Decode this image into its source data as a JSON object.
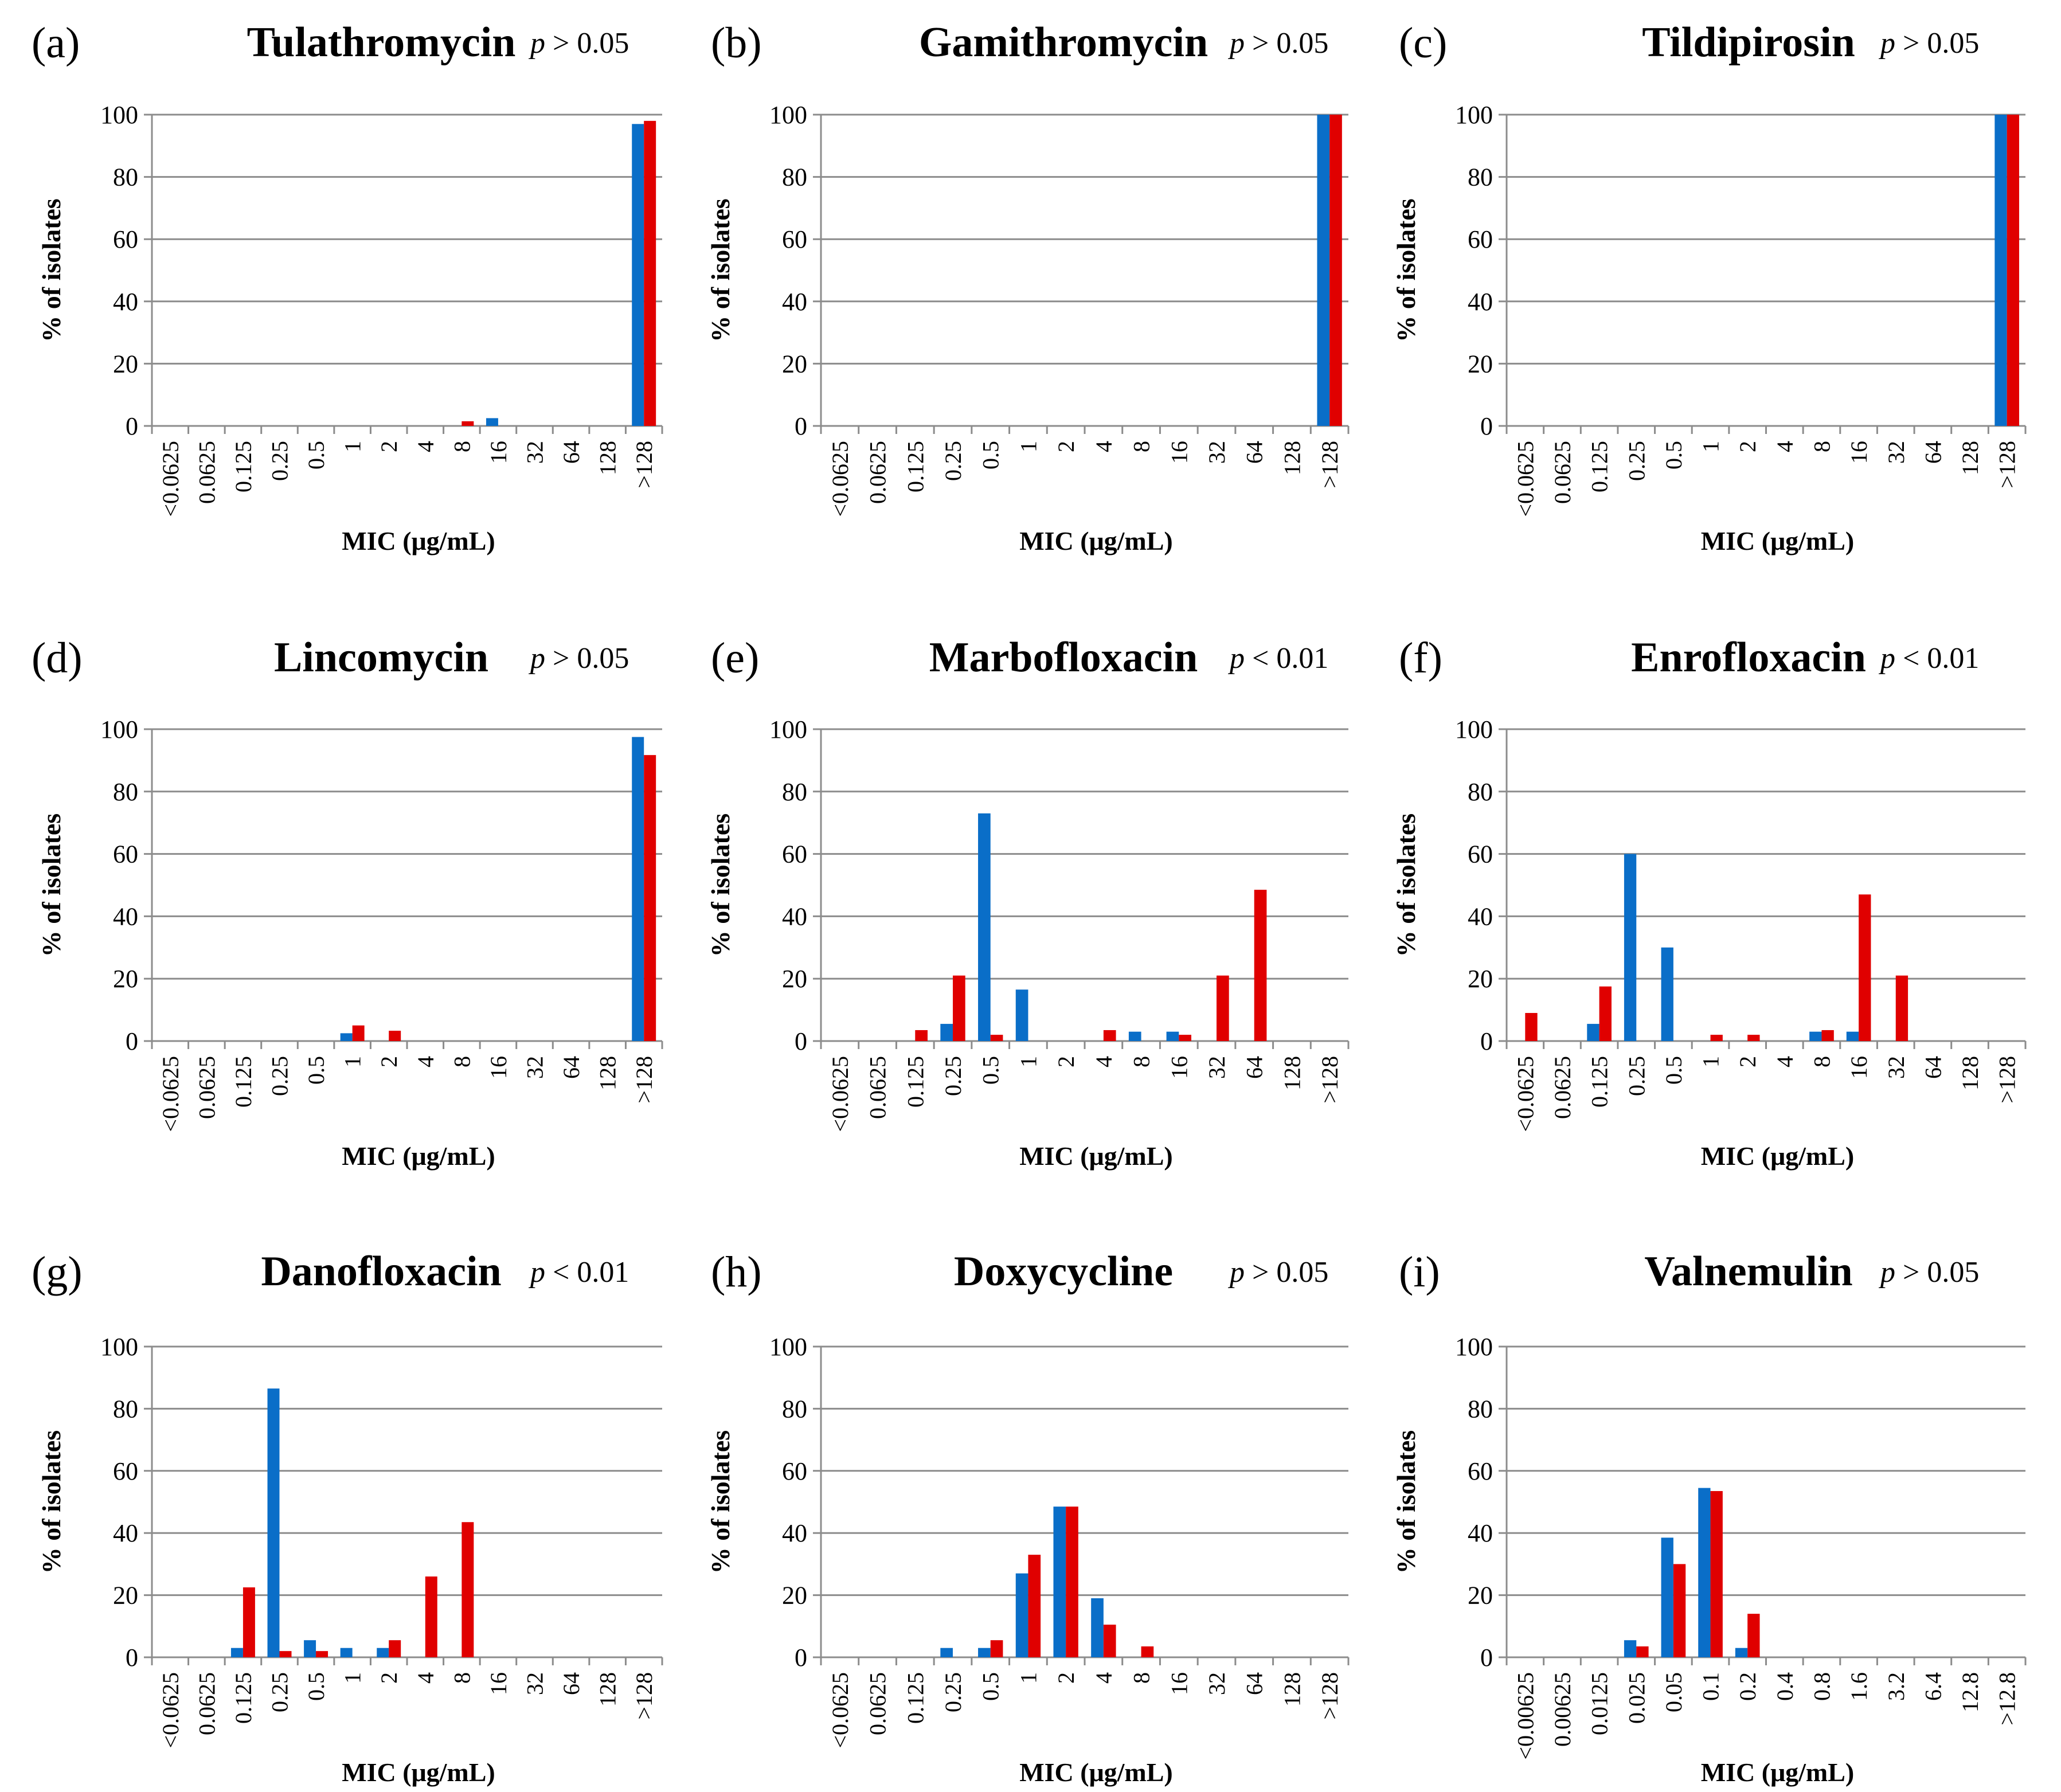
{
  "colors": {
    "series1": "#0a6ec8",
    "series2": "#e00000",
    "grid": "#8c8c8c"
  },
  "chart_data": [
    {
      "type": "bar",
      "panel": "(a)",
      "title": "Tulathromycin",
      "p_symbol": "p",
      "p_rest": " > 0.05",
      "xlabel": "MIC (μg/mL)",
      "ylabel": "% of isolates",
      "ylim": [
        0,
        100
      ],
      "yticks": [
        0,
        20,
        40,
        60,
        80,
        100
      ],
      "categories": [
        "<0.0625",
        "0.0625",
        "0.125",
        "0.25",
        "0.5",
        "1",
        "2",
        "4",
        "8",
        "16",
        "32",
        "64",
        "128",
        ">128"
      ],
      "series": [
        {
          "name": "series1",
          "values": [
            0,
            0,
            0,
            0,
            0,
            0,
            0,
            0,
            0,
            2.5,
            0,
            0,
            0,
            97
          ]
        },
        {
          "name": "series2",
          "values": [
            0,
            0,
            0,
            0,
            0,
            0,
            0,
            0,
            1.5,
            0,
            0,
            0,
            0,
            98
          ]
        }
      ]
    },
    {
      "type": "bar",
      "panel": "(b)",
      "title": "Gamithromycin",
      "p_symbol": "p",
      "p_rest": " > 0.05",
      "xlabel": "MIC (μg/mL)",
      "ylabel": "% of isolates",
      "ylim": [
        0,
        100
      ],
      "yticks": [
        0,
        20,
        40,
        60,
        80,
        100
      ],
      "categories": [
        "<0.0625",
        "0.0625",
        "0.125",
        "0.25",
        "0.5",
        "1",
        "2",
        "4",
        "8",
        "16",
        "32",
        "64",
        "128",
        ">128"
      ],
      "series": [
        {
          "name": "series1",
          "values": [
            0,
            0,
            0,
            0,
            0,
            0,
            0,
            0,
            0,
            0,
            0,
            0,
            0,
            100
          ]
        },
        {
          "name": "series2",
          "values": [
            0,
            0,
            0,
            0,
            0,
            0,
            0,
            0,
            0,
            0,
            0,
            0,
            0,
            100
          ]
        }
      ]
    },
    {
      "type": "bar",
      "panel": "(c)",
      "title": "Tildipirosin",
      "p_symbol": "p",
      "p_rest": " > 0.05",
      "xlabel": "MIC (μg/mL)",
      "ylabel": "% of isolates",
      "ylim": [
        0,
        100
      ],
      "yticks": [
        0,
        20,
        40,
        60,
        80,
        100
      ],
      "categories": [
        "<0.0625",
        "0.0625",
        "0.125",
        "0.25",
        "0.5",
        "1",
        "2",
        "4",
        "8",
        "16",
        "32",
        "64",
        "128",
        ">128"
      ],
      "series": [
        {
          "name": "series1",
          "values": [
            0,
            0,
            0,
            0,
            0,
            0,
            0,
            0,
            0,
            0,
            0,
            0,
            0,
            100
          ]
        },
        {
          "name": "series2",
          "values": [
            0,
            0,
            0,
            0,
            0,
            0,
            0,
            0,
            0,
            0,
            0,
            0,
            0,
            100
          ]
        }
      ]
    },
    {
      "type": "bar",
      "panel": "(d)",
      "title": "Lincomycin",
      "p_symbol": "p",
      "p_rest": " > 0.05",
      "xlabel": "MIC (μg/mL)",
      "ylabel": "% of isolates",
      "ylim": [
        0,
        100
      ],
      "yticks": [
        0,
        20,
        40,
        60,
        80,
        100
      ],
      "categories": [
        "<0.0625",
        "0.0625",
        "0.125",
        "0.25",
        "0.5",
        "1",
        "2",
        "4",
        "8",
        "16",
        "32",
        "64",
        "128",
        ">128"
      ],
      "series": [
        {
          "name": "series1",
          "values": [
            0,
            0,
            0,
            0,
            0,
            2.5,
            0,
            0,
            0,
            0,
            0,
            0,
            0,
            97.5
          ]
        },
        {
          "name": "series2",
          "values": [
            0,
            0,
            0,
            0,
            0,
            5,
            3.3,
            0,
            0,
            0,
            0,
            0,
            0,
            91.7
          ]
        }
      ]
    },
    {
      "type": "bar",
      "panel": "(e)",
      "title": "Marbofloxacin",
      "p_symbol": "p",
      "p_rest": " < 0.01",
      "xlabel": "MIC (μg/mL)",
      "ylabel": "% of isolates",
      "ylim": [
        0,
        100
      ],
      "yticks": [
        0,
        20,
        40,
        60,
        80,
        100
      ],
      "categories": [
        "<0.0625",
        "0.0625",
        "0.125",
        "0.25",
        "0.5",
        "1",
        "2",
        "4",
        "8",
        "16",
        "32",
        "64",
        "128",
        ">128"
      ],
      "series": [
        {
          "name": "series1",
          "values": [
            0,
            0,
            0,
            5.5,
            73,
            16.5,
            0,
            0,
            3,
            3,
            0,
            0,
            0,
            0
          ]
        },
        {
          "name": "series2",
          "values": [
            0,
            0,
            3.5,
            21,
            2,
            0,
            0,
            3.5,
            0,
            2,
            21,
            48.5,
            0,
            0
          ]
        }
      ]
    },
    {
      "type": "bar",
      "panel": "(f)",
      "title": "Enrofloxacin",
      "p_symbol": "p",
      "p_rest": " < 0.01",
      "xlabel": "MIC (μg/mL)",
      "ylabel": "% of isolates",
      "ylim": [
        0,
        100
      ],
      "yticks": [
        0,
        20,
        40,
        60,
        80,
        100
      ],
      "categories": [
        "<0.0625",
        "0.0625",
        "0.125",
        "0.25",
        "0.5",
        "1",
        "2",
        "4",
        "8",
        "16",
        "32",
        "64",
        "128",
        ">128"
      ],
      "series": [
        {
          "name": "series1",
          "values": [
            0,
            0,
            5.5,
            60,
            30,
            0,
            0,
            0,
            3,
            3,
            0,
            0,
            0,
            0
          ]
        },
        {
          "name": "series2",
          "values": [
            9,
            0,
            17.5,
            0,
            0,
            2,
            2,
            0,
            3.5,
            47,
            21,
            0,
            0,
            0
          ]
        }
      ]
    },
    {
      "type": "bar",
      "panel": "(g)",
      "title": "Danofloxacin",
      "p_symbol": "p",
      "p_rest": " < 0.01",
      "xlabel": "MIC (μg/mL)",
      "ylabel": "% of isolates",
      "ylim": [
        0,
        100
      ],
      "yticks": [
        0,
        20,
        40,
        60,
        80,
        100
      ],
      "categories": [
        "<0.0625",
        "0.0625",
        "0.125",
        "0.25",
        "0.5",
        "1",
        "2",
        "4",
        "8",
        "16",
        "32",
        "64",
        "128",
        ">128"
      ],
      "series": [
        {
          "name": "series1",
          "values": [
            0,
            0,
            3,
            86.5,
            5.5,
            3,
            3,
            0,
            0,
            0,
            0,
            0,
            0,
            0
          ]
        },
        {
          "name": "series2",
          "values": [
            0,
            0,
            22.5,
            2,
            2,
            0,
            5.5,
            26,
            43.5,
            0,
            0,
            0,
            0,
            0
          ]
        }
      ]
    },
    {
      "type": "bar",
      "panel": "(h)",
      "title": "Doxycycline",
      "p_symbol": "p",
      "p_rest": " > 0.05",
      "xlabel": "MIC (μg/mL)",
      "ylabel": "% of isolates",
      "ylim": [
        0,
        100
      ],
      "yticks": [
        0,
        20,
        40,
        60,
        80,
        100
      ],
      "categories": [
        "<0.0625",
        "0.0625",
        "0.125",
        "0.25",
        "0.5",
        "1",
        "2",
        "4",
        "8",
        "16",
        "32",
        "64",
        "128",
        ">128"
      ],
      "series": [
        {
          "name": "series1",
          "values": [
            0,
            0,
            0,
            3,
            3,
            27,
            48.5,
            19,
            0,
            0,
            0,
            0,
            0,
            0
          ]
        },
        {
          "name": "series2",
          "values": [
            0,
            0,
            0,
            0,
            5.5,
            33,
            48.5,
            10.5,
            3.5,
            0,
            0,
            0,
            0,
            0
          ]
        }
      ]
    },
    {
      "type": "bar",
      "panel": "(i)",
      "title": "Valnemulin",
      "p_symbol": "p",
      "p_rest": " > 0.05",
      "xlabel": "MIC (μg/mL)",
      "ylabel": "% of isolates",
      "ylim": [
        0,
        100
      ],
      "yticks": [
        0,
        20,
        40,
        60,
        80,
        100
      ],
      "categories": [
        "<0.00625",
        "0.00625",
        "0.0125",
        "0.025",
        "0.05",
        "0.1",
        "0.2",
        "0.4",
        "0.8",
        "1.6",
        "3.2",
        "6.4",
        "12.8",
        ">12.8"
      ],
      "series": [
        {
          "name": "series1",
          "values": [
            0,
            0,
            0,
            5.5,
            38.5,
            54.5,
            3,
            0,
            0,
            0,
            0,
            0,
            0,
            0
          ]
        },
        {
          "name": "series2",
          "values": [
            0,
            0,
            0,
            3.5,
            30,
            53.5,
            14,
            0,
            0,
            0,
            0,
            0,
            0,
            0
          ]
        }
      ]
    }
  ]
}
